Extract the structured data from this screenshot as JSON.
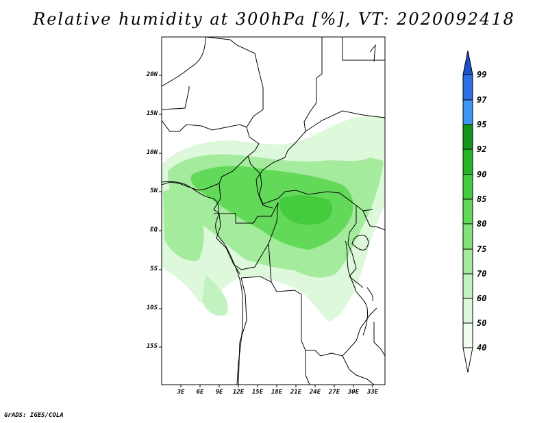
{
  "title": "Relative humidity at 300hPa [%], VT: 2020092418",
  "credit": "GrADS: IGES/COLA",
  "map": {
    "lat_labels": [
      "20N",
      "15N",
      "10N",
      "5N",
      "EQ",
      "5S",
      "10S",
      "15S"
    ],
    "lon_labels": [
      "3E",
      "6E",
      "9E",
      "12E",
      "15E",
      "18E",
      "21E",
      "24E",
      "27E",
      "30E",
      "33E"
    ]
  },
  "colorbar": {
    "labels": [
      "99",
      "97",
      "95",
      "92",
      "90",
      "85",
      "80",
      "75",
      "70",
      "60",
      "50",
      "40"
    ],
    "colors": {
      "c40_50": "#f0fcee",
      "c50_60": "#ddf8da",
      "c60_70": "#c2f2bf",
      "c70_75": "#a4eb9e",
      "c75_80": "#84e27c",
      "c80_85": "#63d95a",
      "c85_90": "#44cc3c",
      "c90_92": "#27b527",
      "c92_95": "#12951a",
      "c95_97": "#3c96f4",
      "c97_99": "#2a72e4",
      "c99_up": "#1a50c8"
    }
  }
}
